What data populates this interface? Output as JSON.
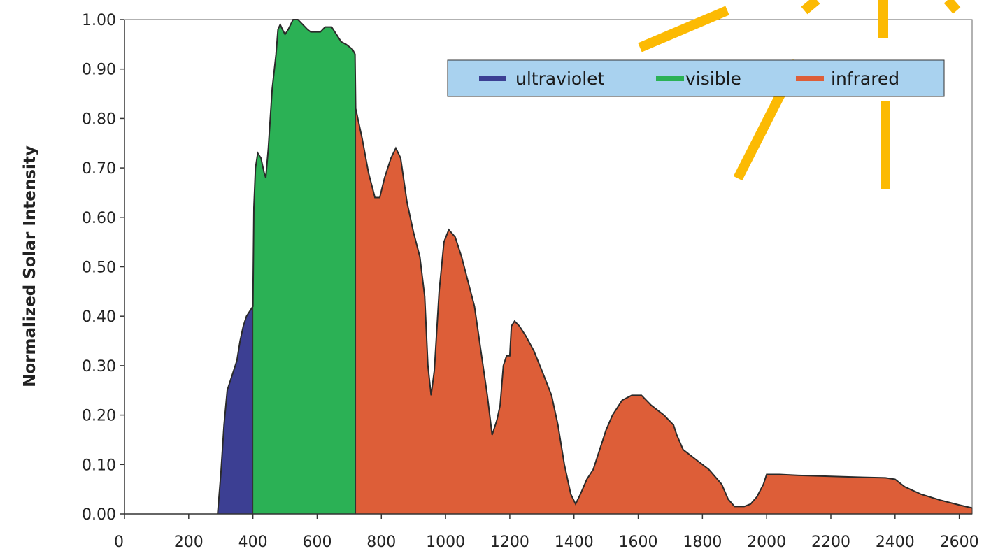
{
  "chart_data": {
    "type": "area",
    "title": "",
    "xlabel": "",
    "ylabel": "Normalized Solar Intensity",
    "xlim": [
      0,
      2640
    ],
    "ylim": [
      0,
      1.0
    ],
    "x_ticks": [
      "0",
      "200",
      "400",
      "600",
      "800",
      "1000",
      "1200",
      "1400",
      "1600",
      "1800",
      "2000",
      "2200",
      "2400",
      "2600"
    ],
    "y_ticks": [
      "0.00",
      "0.10",
      "0.20",
      "0.30",
      "0.40",
      "0.50",
      "0.60",
      "0.70",
      "0.80",
      "0.90",
      "1.00"
    ],
    "grid": false,
    "legend_position": "top-right",
    "series": [
      {
        "name": "ultraviolet",
        "color": "#3c3f93",
        "points": [
          [
            290,
            0.0
          ],
          [
            300,
            0.08
          ],
          [
            310,
            0.18
          ],
          [
            320,
            0.25
          ],
          [
            330,
            0.27
          ],
          [
            340,
            0.29
          ],
          [
            350,
            0.31
          ],
          [
            360,
            0.35
          ],
          [
            370,
            0.38
          ],
          [
            380,
            0.4
          ],
          [
            390,
            0.41
          ],
          [
            400,
            0.42
          ]
        ]
      },
      {
        "name": "visible",
        "color": "#2bb155",
        "points": [
          [
            400,
            0.42
          ],
          [
            403,
            0.62
          ],
          [
            408,
            0.7
          ],
          [
            415,
            0.73
          ],
          [
            425,
            0.72
          ],
          [
            435,
            0.69
          ],
          [
            440,
            0.68
          ],
          [
            448,
            0.74
          ],
          [
            460,
            0.86
          ],
          [
            472,
            0.93
          ],
          [
            478,
            0.98
          ],
          [
            485,
            0.99
          ],
          [
            492,
            0.98
          ],
          [
            500,
            0.97
          ],
          [
            510,
            0.98
          ],
          [
            525,
            1.0
          ],
          [
            540,
            1.0
          ],
          [
            555,
            0.99
          ],
          [
            570,
            0.98
          ],
          [
            580,
            0.975
          ],
          [
            595,
            0.975
          ],
          [
            610,
            0.975
          ],
          [
            625,
            0.985
          ],
          [
            645,
            0.985
          ],
          [
            660,
            0.97
          ],
          [
            675,
            0.955
          ],
          [
            690,
            0.95
          ],
          [
            700,
            0.945
          ],
          [
            710,
            0.94
          ],
          [
            718,
            0.93
          ],
          [
            720,
            0.82
          ]
        ]
      },
      {
        "name": "infrared",
        "color": "#dd5e38",
        "points": [
          [
            720,
            0.82
          ],
          [
            740,
            0.76
          ],
          [
            760,
            0.69
          ],
          [
            780,
            0.64
          ],
          [
            795,
            0.64
          ],
          [
            810,
            0.68
          ],
          [
            830,
            0.72
          ],
          [
            845,
            0.74
          ],
          [
            860,
            0.72
          ],
          [
            880,
            0.63
          ],
          [
            900,
            0.57
          ],
          [
            920,
            0.52
          ],
          [
            935,
            0.44
          ],
          [
            945,
            0.3
          ],
          [
            955,
            0.24
          ],
          [
            965,
            0.29
          ],
          [
            980,
            0.45
          ],
          [
            995,
            0.55
          ],
          [
            1010,
            0.575
          ],
          [
            1030,
            0.56
          ],
          [
            1050,
            0.52
          ],
          [
            1070,
            0.47
          ],
          [
            1090,
            0.42
          ],
          [
            1110,
            0.33
          ],
          [
            1130,
            0.24
          ],
          [
            1145,
            0.16
          ],
          [
            1160,
            0.19
          ],
          [
            1170,
            0.22
          ],
          [
            1180,
            0.3
          ],
          [
            1190,
            0.32
          ],
          [
            1200,
            0.32
          ],
          [
            1205,
            0.38
          ],
          [
            1215,
            0.39
          ],
          [
            1230,
            0.38
          ],
          [
            1250,
            0.36
          ],
          [
            1275,
            0.33
          ],
          [
            1300,
            0.29
          ],
          [
            1330,
            0.24
          ],
          [
            1350,
            0.18
          ],
          [
            1370,
            0.1
          ],
          [
            1390,
            0.04
          ],
          [
            1405,
            0.02
          ],
          [
            1420,
            0.04
          ],
          [
            1440,
            0.07
          ],
          [
            1460,
            0.09
          ],
          [
            1480,
            0.13
          ],
          [
            1500,
            0.17
          ],
          [
            1520,
            0.2
          ],
          [
            1550,
            0.23
          ],
          [
            1580,
            0.24
          ],
          [
            1610,
            0.24
          ],
          [
            1640,
            0.22
          ],
          [
            1680,
            0.2
          ],
          [
            1710,
            0.18
          ],
          [
            1720,
            0.16
          ],
          [
            1740,
            0.13
          ],
          [
            1780,
            0.11
          ],
          [
            1820,
            0.09
          ],
          [
            1860,
            0.06
          ],
          [
            1880,
            0.03
          ],
          [
            1900,
            0.015
          ],
          [
            1930,
            0.015
          ],
          [
            1950,
            0.02
          ],
          [
            1970,
            0.035
          ],
          [
            1990,
            0.06
          ],
          [
            2000,
            0.08
          ],
          [
            2040,
            0.08
          ],
          [
            2100,
            0.078
          ],
          [
            2200,
            0.076
          ],
          [
            2300,
            0.074
          ],
          [
            2370,
            0.073
          ],
          [
            2400,
            0.07
          ],
          [
            2430,
            0.055
          ],
          [
            2480,
            0.04
          ],
          [
            2540,
            0.028
          ],
          [
            2600,
            0.018
          ],
          [
            2640,
            0.012
          ]
        ]
      }
    ],
    "decoration": {
      "sun_ray_color": "#fcba03"
    }
  }
}
